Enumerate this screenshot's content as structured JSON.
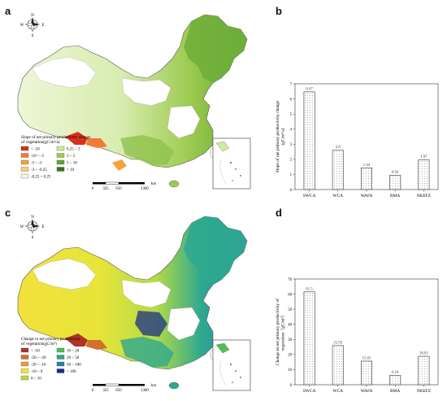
{
  "panels": {
    "a": {
      "letter": "a"
    },
    "b": {
      "letter": "b"
    },
    "c": {
      "letter": "c"
    },
    "d": {
      "letter": "d"
    }
  },
  "compass": {
    "n": "N",
    "s": "S",
    "e": "E",
    "w": "W"
  },
  "scale_bar": {
    "ticks": [
      "0",
      "325",
      "650",
      "1300"
    ],
    "unit": "km"
  },
  "map_a": {
    "legend_title": [
      "Slope of net primary productivity change",
      "of vegetation(gC/m²/a)"
    ],
    "legend_items": [
      {
        "label": "< -10",
        "color": "#d7301f"
      },
      {
        "label": "-10 ~ -5",
        "color": "#f07b35"
      },
      {
        "label": "-5 ~ -3",
        "color": "#f5a23a"
      },
      {
        "label": "-3 ~ -0.25",
        "color": "#f7cf6b"
      },
      {
        "label": "-0.25 ~ 0.25",
        "color": "#f4f8e2"
      },
      {
        "label": "0.25 ~ 3",
        "color": "#cfe8a0"
      },
      {
        "label": "3 ~ 5",
        "color": "#9ccb4f"
      },
      {
        "label": "5 ~ 10",
        "color": "#5fa532"
      },
      {
        "label": "> 10",
        "color": "#2f7a1f"
      }
    ]
  },
  "map_c": {
    "legend_title": [
      "Change in net primary productivity",
      "of vegetation(gC/m²)"
    ],
    "legend_items": [
      {
        "label": "< -50",
        "color": "#b0332a"
      },
      {
        "label": "-50 ~ -20",
        "color": "#d2702e"
      },
      {
        "label": "-20 ~ -10",
        "color": "#e3a23c"
      },
      {
        "label": "-10 ~ 0",
        "color": "#f2e23b"
      },
      {
        "label": "0 ~ 10",
        "color": "#b5dc45"
      },
      {
        "label": "10 ~ 20",
        "color": "#4fbf55"
      },
      {
        "label": "20 ~ 50",
        "color": "#2fa88f"
      },
      {
        "label": "50 ~ 100",
        "color": "#2a7db3"
      },
      {
        "label": "> 100",
        "color": "#1b2f86"
      }
    ]
  },
  "chart_data": [
    {
      "panel": "b",
      "type": "bar",
      "categories": [
        "SWCA",
        "WCA",
        "WAFA",
        "BMA",
        "NKEFZ"
      ],
      "values": [
        6.47,
        2.6,
        1.44,
        0.94,
        1.97
      ],
      "value_labels": [
        "6.47",
        "2.6",
        "1.44",
        "0.94",
        "1.97"
      ],
      "ylabel_lines": [
        "Slope of net primary productivity change",
        "(gC/m²/a)"
      ],
      "ylim": [
        0,
        7
      ],
      "yticks": [
        0,
        1,
        2,
        3,
        4,
        5,
        6,
        7
      ],
      "grid": false
    },
    {
      "panel": "d",
      "type": "bar",
      "categories": [
        "SWCA",
        "WCA",
        "WAFA",
        "BMA",
        "NKEFZ"
      ],
      "values": [
        61.5,
        25.93,
        15.63,
        6.18,
        18.83
      ],
      "value_labels": [
        "61.5",
        "25.93",
        "15.63",
        "6.18",
        "18.83"
      ],
      "ylabel_lines": [
        "Change in net primary productivity of",
        "vegetation（gC/m²）"
      ],
      "ylim": [
        0,
        70
      ],
      "yticks": [
        0,
        10,
        20,
        30,
        40,
        50,
        60,
        70
      ],
      "grid": false
    }
  ]
}
